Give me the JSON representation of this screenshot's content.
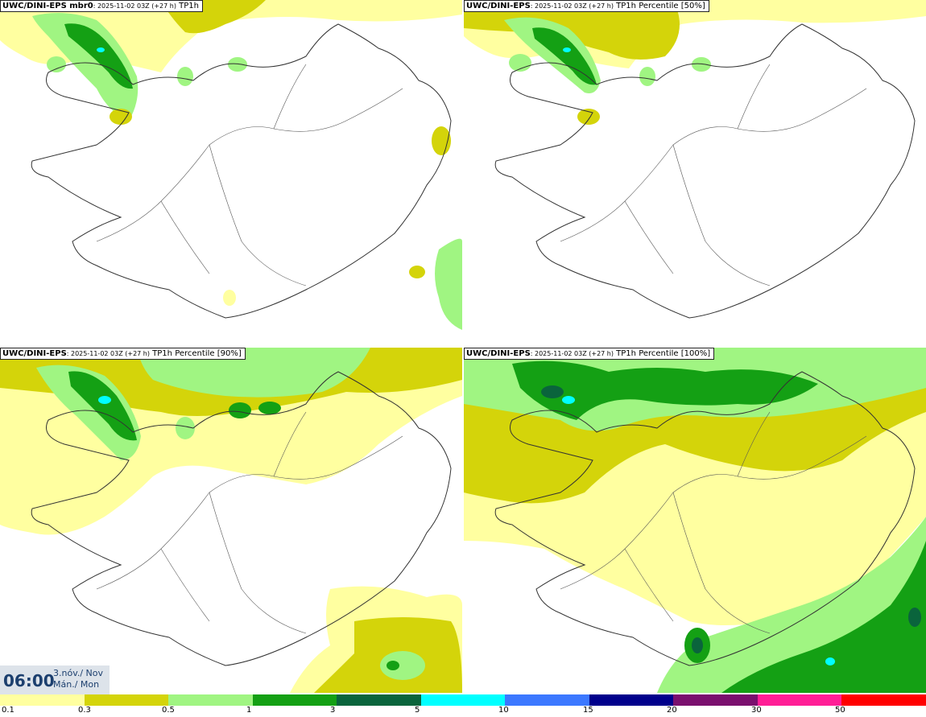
{
  "panels": [
    {
      "model": "UWC/DINI-EPS mbr0",
      "meta": ": 2025-11-02 03Z (+27 h)",
      "field": "TP1h"
    },
    {
      "model": "UWC/DINI-EPS",
      "meta": ": 2025-11-02 03Z (+27 h)",
      "field": "TP1h Percentile [50%]"
    },
    {
      "model": "UWC/DINI-EPS",
      "meta": ": 2025-11-02 03Z (+27 h)",
      "field": "TP1h Percentile [90%]"
    },
    {
      "model": "UWC/DINI-EPS",
      "meta": ": 2025-11-02 03Z (+27 h)",
      "field": "TP1h Percentile [100%]"
    }
  ],
  "valid_time": {
    "time": "06:00",
    "date_line1": "3.nóv./ Nov",
    "date_line2": "Mán./ Mon"
  },
  "legend": {
    "ticks": [
      "0.1",
      "0.3",
      "0.5",
      "1",
      "3",
      "5",
      "10",
      "15",
      "20",
      "30",
      "50"
    ],
    "colors": [
      "#ffffa0",
      "#d4d40a",
      "#a0f582",
      "#14a014",
      "#0a643c",
      "#00ffff",
      "#3c78ff",
      "#00008c",
      "#7a0f6e",
      "#ff1e96",
      "#ff0000"
    ]
  },
  "map_colors": {
    "light_yellow": "#ffffa0",
    "olive": "#d4d40a",
    "light_green": "#a0f582",
    "green": "#14a014",
    "dark_green": "#0a643c",
    "cyan": "#00ffff",
    "outline": "#333333"
  }
}
